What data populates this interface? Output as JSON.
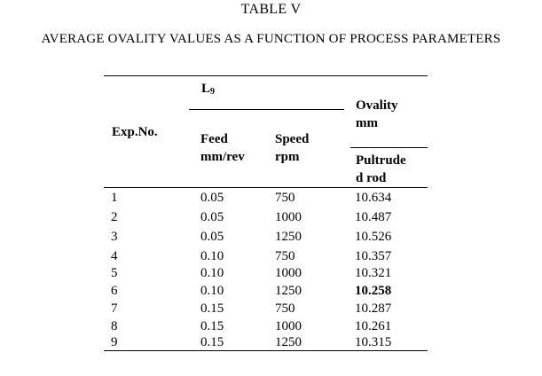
{
  "caption": {
    "title": "TABLE V",
    "subtitle": "AVERAGE OVALITY VALUES AS A FUNCTION OF PROCESS PARAMETERS"
  },
  "header": {
    "exp_no": "Exp.No.",
    "group_label": "L",
    "group_sub": "9",
    "feed_line1": "Feed",
    "feed_line2": "mm/rev",
    "speed_line1": "Speed",
    "speed_line2": "rpm",
    "ovality_line1": "Ovality",
    "ovality_line2": "mm",
    "pultrude_line1": "Pultrude",
    "pultrude_line2": "d rod"
  },
  "rows": [
    {
      "exp": "1",
      "feed": "0.05",
      "speed": "750",
      "ovality": "10.634"
    },
    {
      "exp": "2",
      "feed": "0.05",
      "speed": "1000",
      "ovality": "10.487"
    },
    {
      "exp": "3",
      "feed": "0.05",
      "speed": "1250",
      "ovality": "10.526"
    },
    {
      "exp": "4",
      "feed": "0.10",
      "speed": "750",
      "ovality": "10.357"
    },
    {
      "exp": "5",
      "feed": "0.10",
      "speed": "1000",
      "ovality": "10.321"
    },
    {
      "exp": "6",
      "feed": "0.10",
      "speed": "1250",
      "ovality": "10.258"
    },
    {
      "exp": "7",
      "feed": "0.15",
      "speed": "750",
      "ovality": "10.287"
    },
    {
      "exp": "8",
      "feed": "0.15",
      "speed": "1000",
      "ovality": "10.261"
    },
    {
      "exp": "9",
      "feed": "0.15",
      "speed": "1250",
      "ovality": "10.315"
    }
  ]
}
